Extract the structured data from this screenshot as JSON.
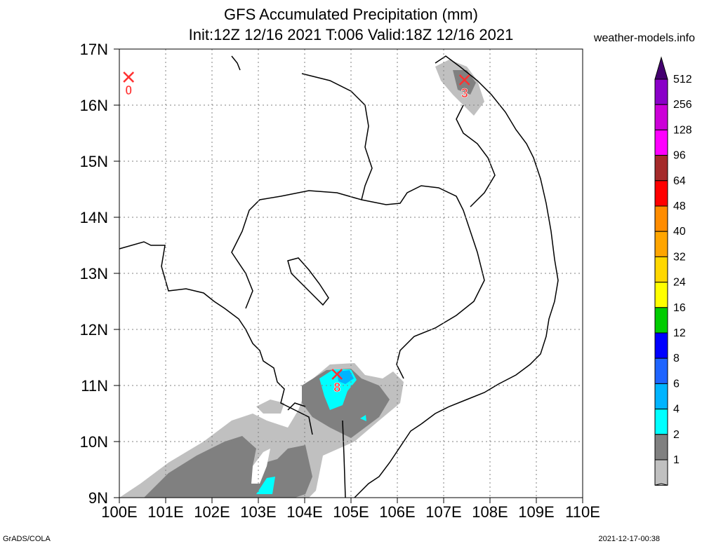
{
  "header": {
    "title": "GFS Accumulated Precipitation (mm)",
    "subtitle": "Init:12Z 12/16 2021 T:006 Valid:18Z 12/16 2021",
    "site": "weather-models.info"
  },
  "footer": {
    "left": "GrADS/COLA",
    "right": "2021-12-17-00:38"
  },
  "map": {
    "lat_labels": [
      "17N",
      "16N",
      "15N",
      "14N",
      "13N",
      "12N",
      "11N",
      "10N",
      "9N"
    ],
    "lon_labels": [
      "100E",
      "101E",
      "102E",
      "103E",
      "104E",
      "105E",
      "106E",
      "107E",
      "108E",
      "109E",
      "110E"
    ],
    "lat_range": [
      9,
      17
    ],
    "lon_range": [
      100,
      110
    ],
    "markers": [
      {
        "lon": 100.2,
        "lat": 16.5,
        "value": "0"
      },
      {
        "lon": 107.45,
        "lat": 16.45,
        "value": "3"
      },
      {
        "lon": 104.7,
        "lat": 11.2,
        "value": "8"
      }
    ]
  },
  "legend": {
    "levels": [
      "512",
      "256",
      "128",
      "96",
      "64",
      "48",
      "40",
      "32",
      "24",
      "16",
      "12",
      "8",
      "6",
      "4",
      "2",
      "1"
    ],
    "colors": [
      "#440070",
      "#8a00c8",
      "#cc00d8",
      "#ff00ff",
      "#a52a2a",
      "#ff0000",
      "#ff8c00",
      "#ffa500",
      "#ffd700",
      "#ffff00",
      "#00cc00",
      "#0000ff",
      "#1e64ff",
      "#00b4ff",
      "#00ffff",
      "#808080",
      "#c0c0c0",
      "#ffffff"
    ]
  },
  "precip_colors": {
    "c1": "#c0c0c0",
    "c2": "#808080",
    "c4": "#00ffff",
    "c6": "#00b4ff"
  }
}
